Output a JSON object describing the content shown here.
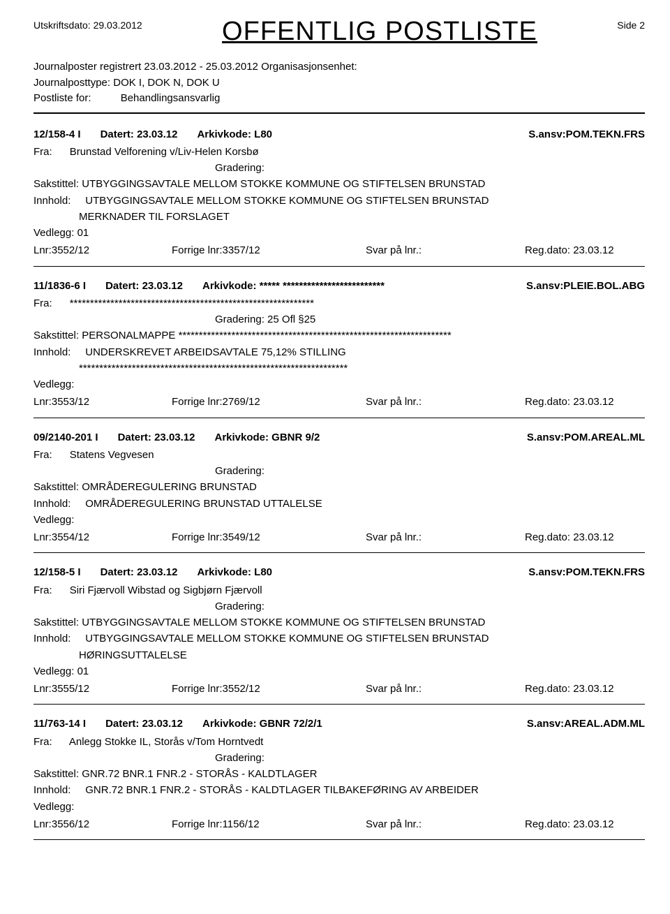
{
  "header": {
    "print_label": "Utskriftsdato:",
    "print_date": "29.03.2012",
    "title": "OFFENTLIG POSTLISTE",
    "side_label": "Side",
    "side_num": "2"
  },
  "meta": {
    "reg_label": "Journalposter registrert",
    "reg_range": "23.03.2012  -  25.03.2012",
    "org_label": "Organisasjonsenhet:",
    "jtype_label": "Journalposttype:",
    "jtype_val": "DOK I, DOK N, DOK U",
    "postliste_label": "Postliste for:",
    "postliste_val": "Behandlingsansvarlig"
  },
  "labels": {
    "datert": "Datert:",
    "arkiv": "Arkivkode:",
    "sansv": "S.ansv:",
    "fra": "Fra:",
    "grad": "Gradering:",
    "saks": "Sakstittel:",
    "innhold": "Innhold:",
    "vedlegg": "Vedlegg:",
    "lnr": "Lnr:",
    "forrige": "Forrige lnr:",
    "svar": "Svar på lnr.:",
    "regdato": "Reg.dato:"
  },
  "entries": [
    {
      "id": "12/158-4  I",
      "datert": "23.03.12",
      "arkiv": "L80",
      "sansv": "POM.TEKN.FRS",
      "fra": "Brunstad Velforening v/Liv-Helen Korsbø",
      "grad": "",
      "saks": "UTBYGGINGSAVTALE MELLOM STOKKE KOMMUNE OG STIFTELSEN BRUNSTAD",
      "innhold": "UTBYGGINGSAVTALE MELLOM STOKKE KOMMUNE OG STIFTELSEN BRUNSTAD",
      "innhold2": "MERKNADER TIL FORSLAGET",
      "vedlegg": "01",
      "lnr": "3552/12",
      "forrige": "3357/12",
      "svar": "",
      "regdato": "23.03.12"
    },
    {
      "id": "11/1836-6  I",
      "datert": "23.03.12",
      "arkiv": "***** *************************",
      "sansv": "PLEIE.BOL.ABG",
      "fra": "************************************************************",
      "grad": "25 Ofl §25",
      "saks": "PERSONALMAPPE  *******************************************************************",
      "innhold": "UNDERSKREVET ARBEIDSAVTALE 75,12% STILLING",
      "innhold2": "******************************************************************",
      "vedlegg": "",
      "lnr": "3553/12",
      "forrige": "2769/12",
      "svar": "",
      "regdato": "23.03.12"
    },
    {
      "id": "09/2140-201  I",
      "datert": "23.03.12",
      "arkiv": "GBNR 9/2",
      "sansv": "POM.AREAL.ML",
      "fra": "Statens Vegvesen",
      "grad": "",
      "saks": "OMRÅDEREGULERING BRUNSTAD",
      "innhold": "OMRÅDEREGULERING BRUNSTAD  UTTALELSE",
      "innhold2": "",
      "vedlegg": "",
      "lnr": "3554/12",
      "forrige": "3549/12",
      "svar": "",
      "regdato": "23.03.12"
    },
    {
      "id": "12/158-5  I",
      "datert": "23.03.12",
      "arkiv": "L80",
      "sansv": "POM.TEKN.FRS",
      "fra": "Siri Fjærvoll Wibstad og Sigbjørn Fjærvoll",
      "grad": "",
      "saks": "UTBYGGINGSAVTALE MELLOM STOKKE KOMMUNE OG STIFTELSEN BRUNSTAD",
      "innhold": "UTBYGGINGSAVTALE MELLOM STOKKE KOMMUNE OG STIFTELSEN BRUNSTAD",
      "innhold2": "HØRINGSUTTALELSE",
      "vedlegg": "01",
      "lnr": "3555/12",
      "forrige": "3552/12",
      "svar": "",
      "regdato": "23.03.12"
    },
    {
      "id": "11/763-14  I",
      "datert": "23.03.12",
      "arkiv": "GBNR 72/2/1",
      "sansv": "AREAL.ADM.ML",
      "fra": "Anlegg Stokke IL, Storås v/Tom Horntvedt",
      "grad": "",
      "saks": "GNR.72 BNR.1 FNR.2 - STORÅS - KALDTLAGER",
      "innhold": "GNR.72 BNR.1 FNR.2 - STORÅS - KALDTLAGER  TILBAKEFØRING AV ARBEIDER",
      "innhold2": "",
      "vedlegg": "",
      "lnr": "3556/12",
      "forrige": "1156/12",
      "svar": "",
      "regdato": "23.03.12"
    }
  ]
}
